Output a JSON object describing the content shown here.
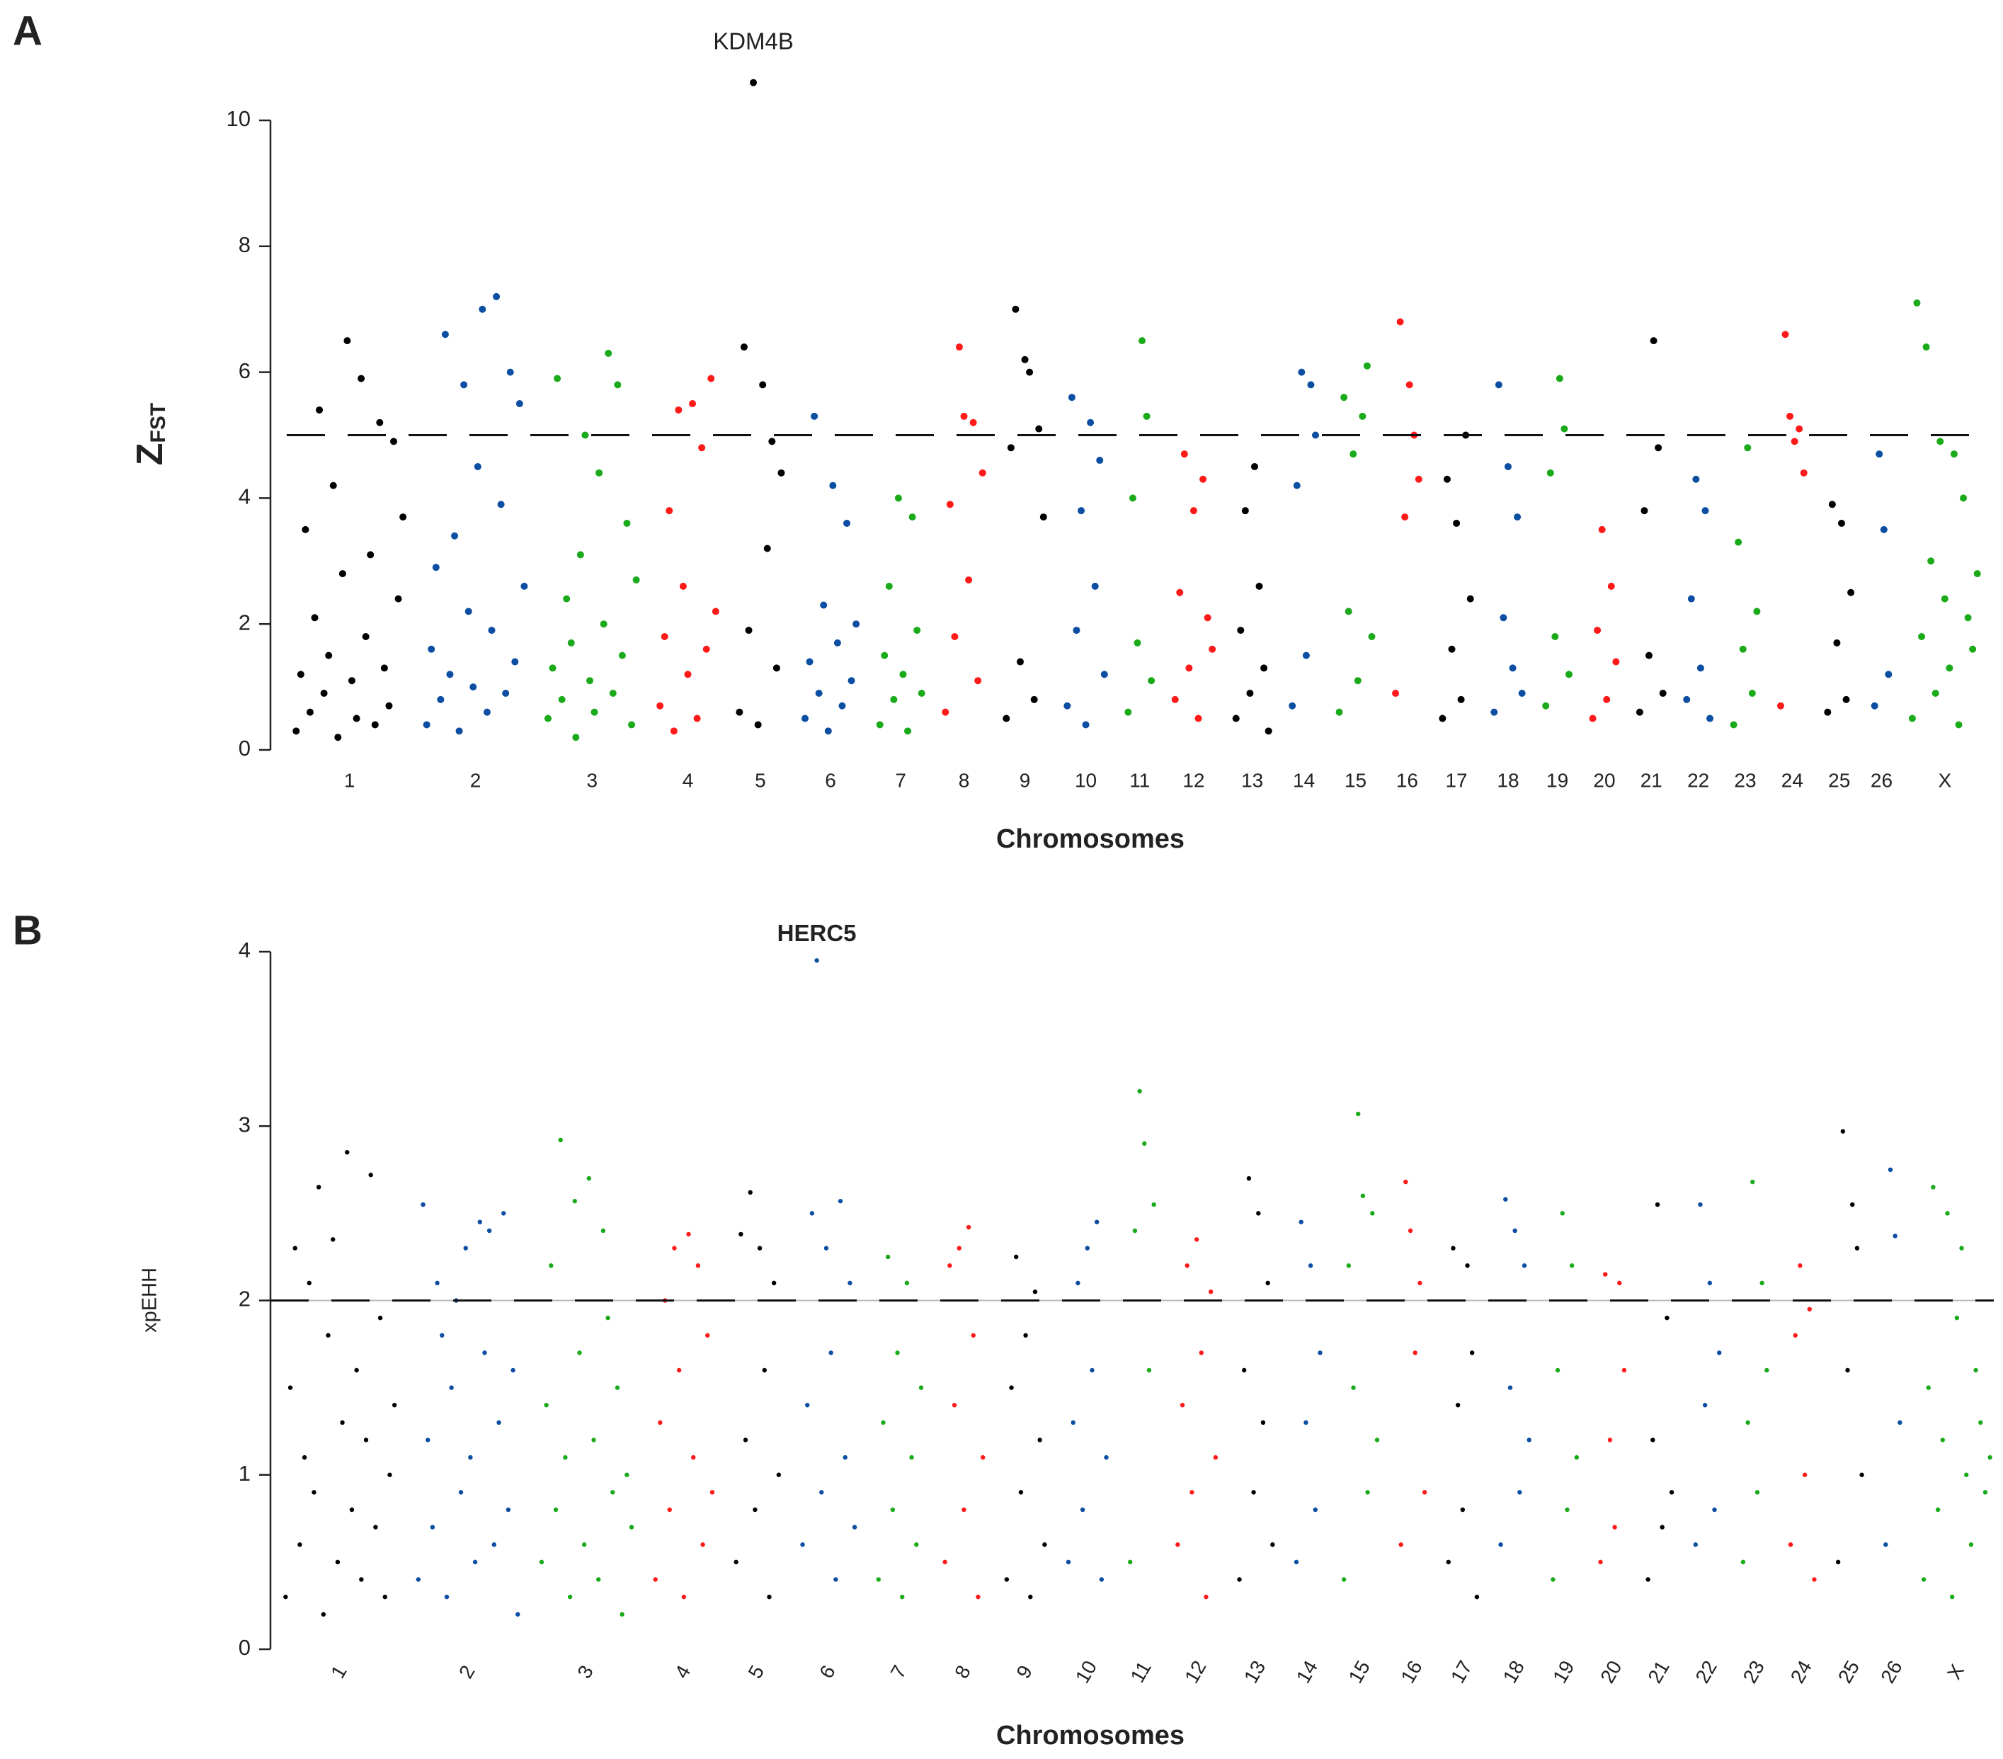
{
  "chart_data": [
    {
      "type": "manhattan",
      "panel": "A",
      "annotation": "KDM4B",
      "ylabel": "Z",
      "ylabel_sub": "FST",
      "xlabel": "Chromosomes",
      "ylim": [
        0,
        10
      ],
      "yticks": [
        0,
        2,
        4,
        6,
        8,
        10
      ],
      "threshold": 5,
      "rotate_xticks": false,
      "series": [
        {
          "name": "1",
          "color": "#000000",
          "values": [
            0.3,
            1.2,
            3.5,
            0.6,
            2.1,
            5.4,
            0.9,
            1.5,
            4.2,
            0.2,
            2.8,
            6.5,
            1.1,
            0.5,
            5.9,
            1.8,
            3.1,
            0.4,
            5.2,
            1.3,
            0.7,
            4.9,
            2.4,
            3.7
          ]
        },
        {
          "name": "2",
          "color": "#0b4ea2",
          "values": [
            0.4,
            1.6,
            2.9,
            0.8,
            6.6,
            1.2,
            3.4,
            0.3,
            5.8,
            2.2,
            1.0,
            4.5,
            7.0,
            0.6,
            1.9,
            7.2,
            3.9,
            0.9,
            6.0,
            1.4,
            5.5,
            2.6
          ]
        },
        {
          "name": "3",
          "color": "#1aaa1a",
          "values": [
            0.5,
            1.3,
            5.9,
            0.8,
            2.4,
            1.7,
            0.2,
            3.1,
            5.0,
            1.1,
            0.6,
            4.4,
            2.0,
            6.3,
            0.9,
            5.8,
            1.5,
            3.6,
            0.4,
            2.7
          ]
        },
        {
          "name": "4",
          "color": "#ff1a1a",
          "values": [
            0.7,
            1.8,
            3.8,
            0.3,
            5.4,
            2.6,
            1.2,
            5.5,
            0.5,
            4.8,
            1.6,
            5.9,
            2.2
          ]
        },
        {
          "name": "5",
          "color": "#000000",
          "values": [
            0.6,
            6.4,
            1.9,
            10.6,
            0.4,
            5.8,
            3.2,
            4.9,
            1.3,
            4.4
          ]
        },
        {
          "name": "6",
          "color": "#0b4ea2",
          "values": [
            0.5,
            1.4,
            5.3,
            0.9,
            2.3,
            0.3,
            4.2,
            1.7,
            0.7,
            3.6,
            1.1,
            2.0
          ]
        },
        {
          "name": "7",
          "color": "#1aaa1a",
          "values": [
            0.4,
            1.5,
            2.6,
            0.8,
            4.0,
            1.2,
            0.3,
            3.7,
            1.9,
            0.9
          ]
        },
        {
          "name": "8",
          "color": "#ff1a1a",
          "values": [
            0.6,
            3.9,
            1.8,
            6.4,
            5.3,
            2.7,
            5.2,
            1.1,
            4.4
          ]
        },
        {
          "name": "9",
          "color": "#000000",
          "values": [
            0.5,
            4.8,
            7.0,
            1.4,
            6.2,
            6.0,
            0.8,
            5.1,
            3.7
          ]
        },
        {
          "name": "10",
          "color": "#0b4ea2",
          "values": [
            0.7,
            5.6,
            1.9,
            3.8,
            0.4,
            5.2,
            2.6,
            4.6,
            1.2
          ]
        },
        {
          "name": "11",
          "color": "#1aaa1a",
          "values": [
            0.6,
            4.0,
            1.7,
            6.5,
            5.3,
            1.1
          ]
        },
        {
          "name": "12",
          "color": "#ff1a1a",
          "values": [
            0.8,
            2.5,
            4.7,
            1.3,
            3.8,
            0.5,
            4.3,
            2.1,
            1.6
          ]
        },
        {
          "name": "13",
          "color": "#000000",
          "values": [
            0.5,
            1.9,
            3.8,
            0.9,
            4.5,
            2.6,
            1.3,
            0.3
          ]
        },
        {
          "name": "14",
          "color": "#0b4ea2",
          "values": [
            0.7,
            4.2,
            6.0,
            1.5,
            5.8,
            5.0
          ]
        },
        {
          "name": "15",
          "color": "#1aaa1a",
          "values": [
            0.6,
            5.6,
            2.2,
            4.7,
            1.1,
            5.3,
            6.1,
            1.8
          ]
        },
        {
          "name": "16",
          "color": "#ff1a1a",
          "values": [
            0.9,
            6.8,
            3.7,
            5.8,
            5.0,
            4.3
          ]
        },
        {
          "name": "17",
          "color": "#000000",
          "values": [
            0.5,
            4.3,
            1.6,
            3.6,
            0.8,
            5.0,
            2.4
          ]
        },
        {
          "name": "18",
          "color": "#0b4ea2",
          "values": [
            0.6,
            5.8,
            2.1,
            4.5,
            1.3,
            3.7,
            0.9
          ]
        },
        {
          "name": "19",
          "color": "#1aaa1a",
          "values": [
            0.7,
            4.4,
            1.8,
            5.9,
            5.1,
            1.2
          ]
        },
        {
          "name": "20",
          "color": "#ff1a1a",
          "values": [
            0.5,
            1.9,
            3.5,
            0.8,
            2.6,
            1.4
          ]
        },
        {
          "name": "21",
          "color": "#000000",
          "values": [
            0.6,
            3.8,
            1.5,
            6.5,
            4.8,
            0.9
          ]
        },
        {
          "name": "22",
          "color": "#0b4ea2",
          "values": [
            0.8,
            2.4,
            4.3,
            1.3,
            3.8,
            0.5
          ]
        },
        {
          "name": "23",
          "color": "#1aaa1a",
          "values": [
            0.4,
            3.3,
            1.6,
            4.8,
            0.9,
            2.2
          ]
        },
        {
          "name": "24",
          "color": "#ff1a1a",
          "values": [
            0.7,
            6.6,
            5.3,
            4.9,
            5.1,
            4.4
          ]
        },
        {
          "name": "25",
          "color": "#000000",
          "values": [
            0.6,
            3.9,
            1.7,
            3.6,
            0.8,
            2.5
          ]
        },
        {
          "name": "26",
          "color": "#0b4ea2",
          "values": [
            0.7,
            4.7,
            3.5,
            1.2
          ]
        },
        {
          "name": "X",
          "color": "#1aaa1a",
          "values": [
            0.5,
            7.1,
            1.8,
            6.4,
            3.0,
            0.9,
            4.9,
            2.4,
            1.3,
            4.7,
            0.4,
            4.0,
            2.1,
            1.6,
            2.8
          ]
        }
      ]
    },
    {
      "type": "manhattan",
      "panel": "B",
      "annotation": "HERC5",
      "ylabel": "xpEHH",
      "xlabel": "Chromosomes",
      "ylim": [
        0,
        4
      ],
      "yticks": [
        0,
        1,
        2,
        3,
        4
      ],
      "threshold": 2,
      "rotate_xticks": true,
      "series": [
        {
          "name": "1",
          "color": "#000000",
          "values": [
            0.3,
            1.5,
            2.3,
            0.6,
            1.1,
            2.1,
            0.9,
            2.65,
            0.2,
            1.8,
            2.35,
            0.5,
            1.3,
            2.85,
            0.8,
            1.6,
            0.4,
            1.2,
            2.72,
            0.7,
            1.9,
            0.3,
            1.0,
            1.4
          ]
        },
        {
          "name": "2",
          "color": "#0b4ea2",
          "values": [
            0.4,
            2.55,
            1.2,
            0.7,
            2.1,
            1.8,
            0.3,
            1.5,
            2.0,
            0.9,
            2.3,
            1.1,
            0.5,
            2.45,
            1.7,
            2.4,
            0.6,
            1.3,
            2.5,
            0.8,
            1.6,
            0.2
          ]
        },
        {
          "name": "3",
          "color": "#1aaa1a",
          "values": [
            0.5,
            1.4,
            2.2,
            0.8,
            2.92,
            1.1,
            0.3,
            2.57,
            1.7,
            0.6,
            2.7,
            1.2,
            0.4,
            2.4,
            1.9,
            0.9,
            1.5,
            0.2,
            1.0,
            0.7
          ]
        },
        {
          "name": "4",
          "color": "#ff1a1a",
          "values": [
            0.4,
            1.3,
            2.0,
            0.8,
            2.3,
            1.6,
            0.3,
            2.38,
            1.1,
            2.2,
            0.6,
            1.8,
            0.9
          ]
        },
        {
          "name": "5",
          "color": "#000000",
          "values": [
            0.5,
            2.38,
            1.2,
            2.62,
            0.8,
            2.3,
            1.6,
            0.3,
            2.1,
            1.0
          ]
        },
        {
          "name": "6",
          "color": "#0b4ea2",
          "values": [
            0.6,
            1.4,
            2.5,
            3.95,
            0.9,
            2.3,
            1.7,
            0.4,
            2.57,
            1.1,
            2.1,
            0.7
          ]
        },
        {
          "name": "7",
          "color": "#1aaa1a",
          "values": [
            0.4,
            1.3,
            2.25,
            0.8,
            1.7,
            0.3,
            2.1,
            1.1,
            0.6,
            1.5
          ]
        },
        {
          "name": "8",
          "color": "#ff1a1a",
          "values": [
            0.5,
            2.2,
            1.4,
            2.3,
            0.8,
            2.42,
            1.8,
            0.3,
            1.1
          ]
        },
        {
          "name": "9",
          "color": "#000000",
          "values": [
            0.4,
            1.5,
            2.25,
            0.9,
            1.8,
            0.3,
            2.05,
            1.2,
            0.6
          ]
        },
        {
          "name": "10",
          "color": "#0b4ea2",
          "values": [
            0.5,
            1.3,
            2.1,
            0.8,
            2.3,
            1.6,
            2.45,
            0.4,
            1.1
          ]
        },
        {
          "name": "11",
          "color": "#1aaa1a",
          "values": [
            0.5,
            2.4,
            3.2,
            2.9,
            1.6,
            2.55
          ]
        },
        {
          "name": "12",
          "color": "#ff1a1a",
          "values": [
            0.6,
            1.4,
            2.2,
            0.9,
            2.35,
            1.7,
            0.3,
            2.05,
            1.1
          ]
        },
        {
          "name": "13",
          "color": "#000000",
          "values": [
            0.4,
            1.6,
            2.7,
            0.9,
            2.5,
            1.3,
            2.1,
            0.6
          ]
        },
        {
          "name": "14",
          "color": "#0b4ea2",
          "values": [
            0.5,
            2.45,
            1.3,
            2.2,
            0.8,
            1.7
          ]
        },
        {
          "name": "15",
          "color": "#1aaa1a",
          "values": [
            0.4,
            2.2,
            1.5,
            3.07,
            2.6,
            0.9,
            2.5,
            1.2
          ]
        },
        {
          "name": "16",
          "color": "#ff1a1a",
          "values": [
            0.6,
            2.68,
            2.4,
            1.7,
            2.1,
            0.9
          ]
        },
        {
          "name": "17",
          "color": "#000000",
          "values": [
            0.5,
            2.3,
            1.4,
            0.8,
            2.2,
            1.7,
            0.3
          ]
        },
        {
          "name": "18",
          "color": "#0b4ea2",
          "values": [
            0.6,
            2.58,
            1.5,
            2.4,
            0.9,
            2.2,
            1.2
          ]
        },
        {
          "name": "19",
          "color": "#1aaa1a",
          "values": [
            0.4,
            1.6,
            2.5,
            0.8,
            2.2,
            1.1
          ]
        },
        {
          "name": "20",
          "color": "#ff1a1a",
          "values": [
            0.5,
            2.15,
            1.2,
            0.7,
            2.1,
            1.6
          ]
        },
        {
          "name": "21",
          "color": "#000000",
          "values": [
            0.4,
            1.2,
            2.55,
            0.7,
            1.9,
            0.9
          ]
        },
        {
          "name": "22",
          "color": "#0b4ea2",
          "values": [
            0.6,
            2.55,
            1.4,
            2.1,
            0.8,
            1.7
          ]
        },
        {
          "name": "23",
          "color": "#1aaa1a",
          "values": [
            0.5,
            1.3,
            2.68,
            0.9,
            2.1,
            1.6
          ]
        },
        {
          "name": "24",
          "color": "#ff1a1a",
          "values": [
            0.6,
            1.8,
            2.2,
            1.0,
            1.95,
            0.4
          ]
        },
        {
          "name": "25",
          "color": "#000000",
          "values": [
            0.5,
            2.97,
            1.6,
            2.55,
            2.3,
            1.0
          ]
        },
        {
          "name": "26",
          "color": "#0b4ea2",
          "values": [
            0.6,
            2.75,
            2.37,
            1.3
          ]
        },
        {
          "name": "X",
          "color": "#1aaa1a",
          "values": [
            0.4,
            1.5,
            2.65,
            0.8,
            1.2,
            2.5,
            0.3,
            1.9,
            2.3,
            1.0,
            0.6,
            1.6,
            1.3,
            0.9,
            1.1
          ]
        }
      ]
    }
  ]
}
